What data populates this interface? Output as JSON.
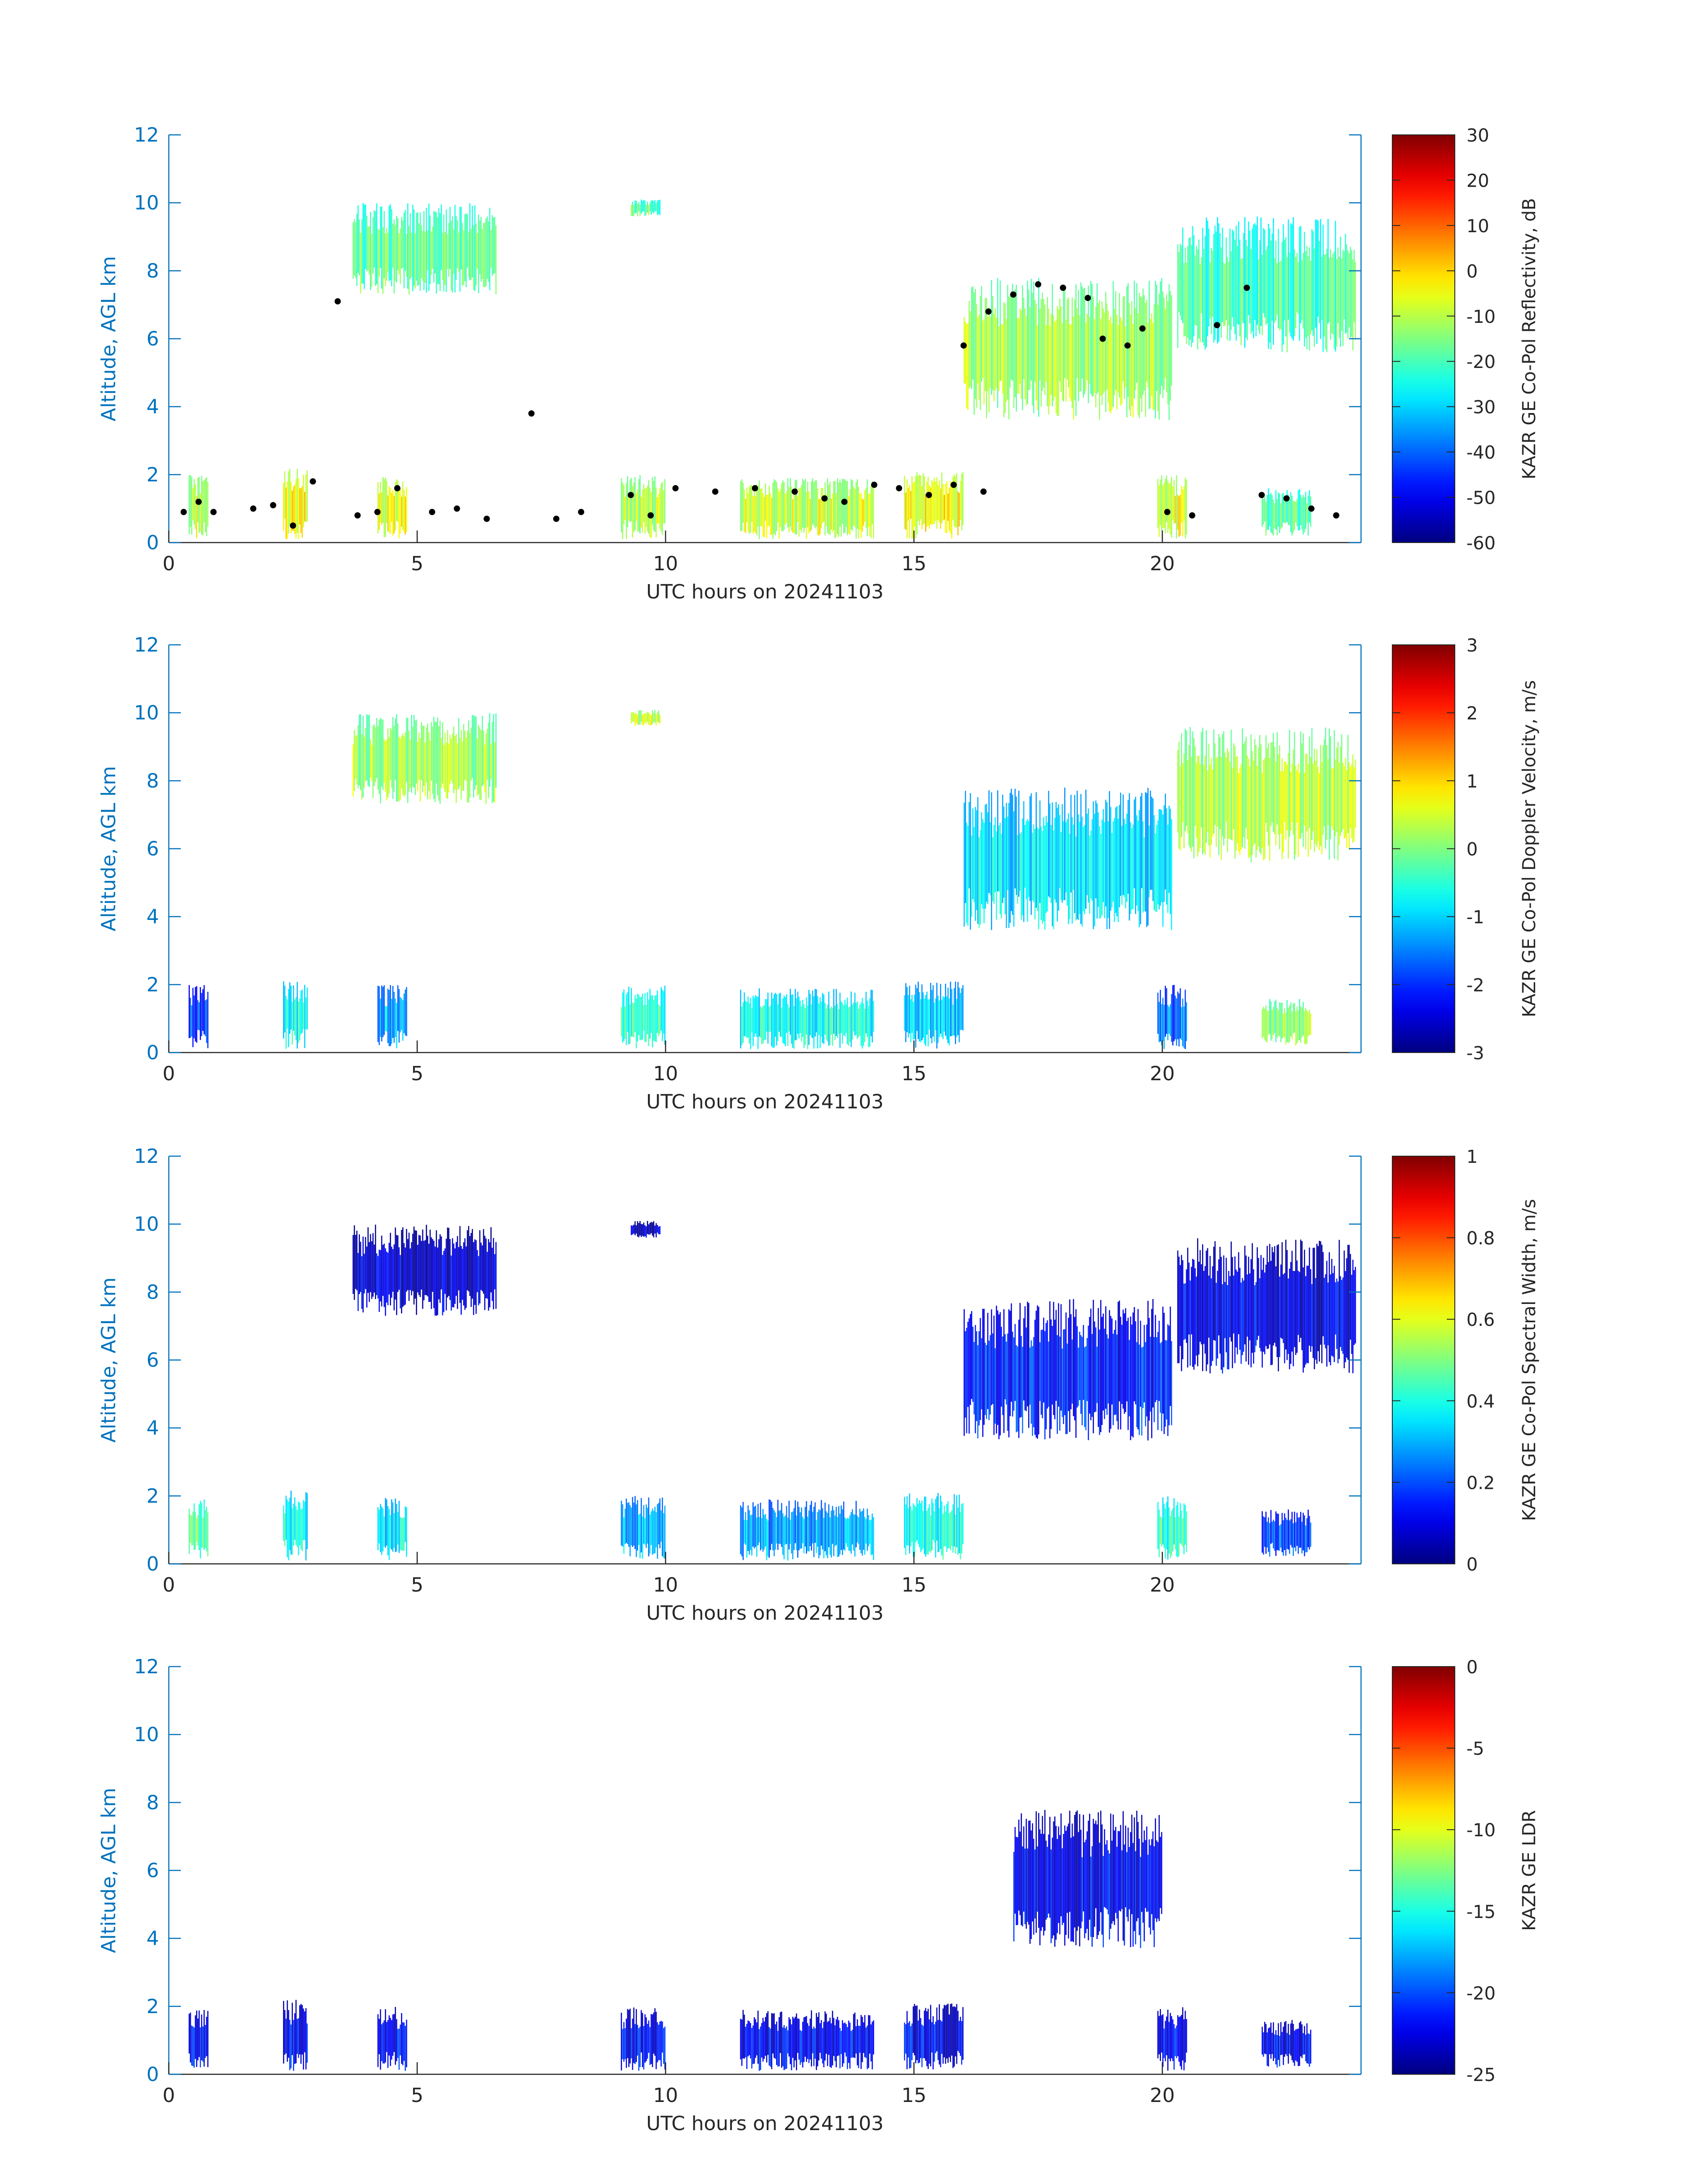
{
  "chart_data": [
    {
      "type": "heatmap",
      "xlabel": "UTC hours on 20241103",
      "ylabel": "Altitude, AGL km",
      "xlim": [
        0,
        24
      ],
      "ylim": [
        0,
        12
      ],
      "xticks": [
        "0",
        "5",
        "10",
        "15",
        "20"
      ],
      "yticks": [
        "0",
        "2",
        "4",
        "6",
        "8",
        "10",
        "12"
      ],
      "colorbar_label": "KAZR GE Co-Pol Reflectivity, dB",
      "colorbar_range": [
        -60,
        30
      ],
      "colorbar_ticks": [
        "-60",
        "-50",
        "-40",
        "-30",
        "-20",
        "-10",
        "0",
        "10",
        "20",
        "30"
      ],
      "colormap": "jet",
      "overlay": "cloud-base points (black)",
      "regions": [
        {
          "x0": 3.7,
          "x1": 6.6,
          "y0": 7.3,
          "y1": 10.0,
          "value": -17
        },
        {
          "x0": 9.3,
          "x1": 9.9,
          "y0": 9.6,
          "y1": 10.1,
          "value": -18
        },
        {
          "x0": 16.0,
          "x1": 20.2,
          "y0": 3.6,
          "y1": 7.8,
          "value": -12
        },
        {
          "x0": 20.3,
          "x1": 23.9,
          "y0": 5.6,
          "y1": 9.6,
          "value": -20
        },
        {
          "x0": 0.4,
          "x1": 0.8,
          "y0": 0.1,
          "y1": 2.0,
          "value": -8
        },
        {
          "x0": 2.3,
          "x1": 2.8,
          "y0": 0.1,
          "y1": 2.2,
          "value": -4
        },
        {
          "x0": 4.2,
          "x1": 4.8,
          "y0": 0.1,
          "y1": 2.0,
          "value": -6
        },
        {
          "x0": 9.1,
          "x1": 10.0,
          "y0": 0.1,
          "y1": 2.0,
          "value": -10
        },
        {
          "x0": 11.5,
          "x1": 14.2,
          "y0": 0.1,
          "y1": 1.9,
          "value": -8
        },
        {
          "x0": 14.8,
          "x1": 16.0,
          "y0": 0.1,
          "y1": 2.1,
          "value": -4
        },
        {
          "x0": 19.9,
          "x1": 20.5,
          "y0": 0.1,
          "y1": 2.0,
          "value": -6
        },
        {
          "x0": 22.0,
          "x1": 23.0,
          "y0": 0.2,
          "y1": 1.6,
          "value": -18
        }
      ],
      "cloud_base_points": [
        [
          0.3,
          0.9
        ],
        [
          0.6,
          1.2
        ],
        [
          0.9,
          0.9
        ],
        [
          1.7,
          1.0
        ],
        [
          2.1,
          1.1
        ],
        [
          2.5,
          0.5
        ],
        [
          2.9,
          1.8
        ],
        [
          3.4,
          7.1
        ],
        [
          3.8,
          0.8
        ],
        [
          4.2,
          0.9
        ],
        [
          4.6,
          1.6
        ],
        [
          5.3,
          0.9
        ],
        [
          5.8,
          1.0
        ],
        [
          6.4,
          0.7
        ],
        [
          7.3,
          3.8
        ],
        [
          7.8,
          0.7
        ],
        [
          8.3,
          0.9
        ],
        [
          9.3,
          1.4
        ],
        [
          9.7,
          0.8
        ],
        [
          10.2,
          1.6
        ],
        [
          11.0,
          1.5
        ],
        [
          11.8,
          1.6
        ],
        [
          12.6,
          1.5
        ],
        [
          13.2,
          1.3
        ],
        [
          13.6,
          1.2
        ],
        [
          14.2,
          1.7
        ],
        [
          14.7,
          1.6
        ],
        [
          15.3,
          1.4
        ],
        [
          15.8,
          1.7
        ],
        [
          16.4,
          1.5
        ],
        [
          16.0,
          5.8
        ],
        [
          16.5,
          6.8
        ],
        [
          17.0,
          7.3
        ],
        [
          17.5,
          7.6
        ],
        [
          18.0,
          7.5
        ],
        [
          18.5,
          7.2
        ],
        [
          18.8,
          6.0
        ],
        [
          19.3,
          5.8
        ],
        [
          19.6,
          6.3
        ],
        [
          20.1,
          0.9
        ],
        [
          20.6,
          0.8
        ],
        [
          21.1,
          6.4
        ],
        [
          21.7,
          7.5
        ],
        [
          22.0,
          1.4
        ],
        [
          22.5,
          1.3
        ],
        [
          23.0,
          1.0
        ],
        [
          23.5,
          0.8
        ]
      ]
    },
    {
      "type": "heatmap",
      "xlabel": "UTC hours on 20241103",
      "ylabel": "Altitude, AGL km",
      "xlim": [
        0,
        24
      ],
      "ylim": [
        0,
        12
      ],
      "xticks": [
        "0",
        "5",
        "10",
        "15",
        "20"
      ],
      "yticks": [
        "0",
        "2",
        "4",
        "6",
        "8",
        "10",
        "12"
      ],
      "colorbar_label": "KAZR GE Co-Pol Doppler Velocity, m/s",
      "colorbar_range": [
        -3,
        3
      ],
      "colorbar_ticks": [
        "-3",
        "-2",
        "-1",
        "0",
        "1",
        "2",
        "3"
      ],
      "colormap": "jet",
      "regions": [
        {
          "x0": 3.7,
          "x1": 6.6,
          "y0": 7.3,
          "y1": 10.0,
          "value": 0.2
        },
        {
          "x0": 9.3,
          "x1": 9.9,
          "y0": 9.6,
          "y1": 10.1,
          "value": 0.4
        },
        {
          "x0": 16.0,
          "x1": 20.2,
          "y0": 3.6,
          "y1": 7.8,
          "value": -0.9
        },
        {
          "x0": 20.3,
          "x1": 23.9,
          "y0": 5.6,
          "y1": 9.6,
          "value": 0.3
        },
        {
          "x0": 0.4,
          "x1": 0.8,
          "y0": 0.1,
          "y1": 2.0,
          "value": -1.8
        },
        {
          "x0": 2.3,
          "x1": 2.8,
          "y0": 0.1,
          "y1": 2.2,
          "value": -0.8
        },
        {
          "x0": 4.2,
          "x1": 4.8,
          "y0": 0.1,
          "y1": 2.0,
          "value": -1.2
        },
        {
          "x0": 9.1,
          "x1": 10.0,
          "y0": 0.1,
          "y1": 2.0,
          "value": -0.5
        },
        {
          "x0": 11.5,
          "x1": 14.2,
          "y0": 0.1,
          "y1": 1.9,
          "value": -0.7
        },
        {
          "x0": 14.8,
          "x1": 16.0,
          "y0": 0.1,
          "y1": 2.1,
          "value": -1.0
        },
        {
          "x0": 19.9,
          "x1": 20.5,
          "y0": 0.1,
          "y1": 2.0,
          "value": -1.6
        },
        {
          "x0": 22.0,
          "x1": 23.0,
          "y0": 0.2,
          "y1": 1.6,
          "value": 0.1
        }
      ]
    },
    {
      "type": "heatmap",
      "xlabel": "UTC hours on 20241103",
      "ylabel": "Altitude, AGL km",
      "xlim": [
        0,
        24
      ],
      "ylim": [
        0,
        12
      ],
      "xticks": [
        "0",
        "5",
        "10",
        "15",
        "20"
      ],
      "yticks": [
        "0",
        "2",
        "4",
        "6",
        "8",
        "10",
        "12"
      ],
      "colorbar_label": "KAZR GE Co-Pol Spectral Width, m/s",
      "colorbar_range": [
        0,
        1
      ],
      "colorbar_ticks": [
        "0",
        "0.2",
        "0.4",
        "0.6",
        "0.8",
        "1"
      ],
      "colormap": "jet",
      "regions": [
        {
          "x0": 3.7,
          "x1": 6.6,
          "y0": 7.3,
          "y1": 10.0,
          "value": 0.08
        },
        {
          "x0": 9.3,
          "x1": 9.9,
          "y0": 9.6,
          "y1": 10.1,
          "value": 0.06
        },
        {
          "x0": 16.0,
          "x1": 20.2,
          "y0": 3.6,
          "y1": 7.8,
          "value": 0.15
        },
        {
          "x0": 20.3,
          "x1": 23.9,
          "y0": 5.6,
          "y1": 9.6,
          "value": 0.1
        },
        {
          "x0": 0.4,
          "x1": 0.8,
          "y0": 0.1,
          "y1": 2.0,
          "value": 0.45
        },
        {
          "x0": 2.3,
          "x1": 2.8,
          "y0": 0.1,
          "y1": 2.2,
          "value": 0.38
        },
        {
          "x0": 4.2,
          "x1": 4.8,
          "y0": 0.1,
          "y1": 2.0,
          "value": 0.35
        },
        {
          "x0": 9.1,
          "x1": 10.0,
          "y0": 0.1,
          "y1": 2.0,
          "value": 0.3
        },
        {
          "x0": 11.5,
          "x1": 14.2,
          "y0": 0.1,
          "y1": 1.9,
          "value": 0.28
        },
        {
          "x0": 14.8,
          "x1": 16.0,
          "y0": 0.1,
          "y1": 2.1,
          "value": 0.4
        },
        {
          "x0": 19.9,
          "x1": 20.5,
          "y0": 0.1,
          "y1": 2.0,
          "value": 0.42
        },
        {
          "x0": 22.0,
          "x1": 23.0,
          "y0": 0.2,
          "y1": 1.6,
          "value": 0.2
        }
      ]
    },
    {
      "type": "heatmap",
      "xlabel": "UTC hours on 20241103",
      "ylabel": "Altitude, AGL km",
      "xlim": [
        0,
        24
      ],
      "ylim": [
        0,
        12
      ],
      "xticks": [
        "0",
        "5",
        "10",
        "15",
        "20"
      ],
      "yticks": [
        "0",
        "2",
        "4",
        "6",
        "8",
        "10",
        "12"
      ],
      "colorbar_label": "KAZR GE LDR",
      "colorbar_range": [
        -25,
        0
      ],
      "colorbar_ticks": [
        "-25",
        "-20",
        "-15",
        "-10",
        "-5",
        "0"
      ],
      "colormap": "jet",
      "regions": [
        {
          "x0": 17.0,
          "x1": 20.0,
          "y0": 3.7,
          "y1": 7.8,
          "value": -22
        },
        {
          "x0": 0.4,
          "x1": 0.8,
          "y0": 0.1,
          "y1": 2.0,
          "value": -22
        },
        {
          "x0": 2.3,
          "x1": 2.8,
          "y0": 0.1,
          "y1": 2.2,
          "value": -22
        },
        {
          "x0": 4.2,
          "x1": 4.8,
          "y0": 0.1,
          "y1": 2.0,
          "value": -22
        },
        {
          "x0": 9.1,
          "x1": 10.0,
          "y0": 0.1,
          "y1": 2.0,
          "value": -22
        },
        {
          "x0": 11.5,
          "x1": 14.2,
          "y0": 0.1,
          "y1": 1.9,
          "value": -22
        },
        {
          "x0": 14.8,
          "x1": 16.0,
          "y0": 0.1,
          "y1": 2.1,
          "value": -22
        },
        {
          "x0": 19.9,
          "x1": 20.5,
          "y0": 0.1,
          "y1": 2.0,
          "value": -22
        },
        {
          "x0": 22.0,
          "x1": 23.0,
          "y0": 0.2,
          "y1": 1.6,
          "value": -22
        }
      ]
    }
  ],
  "colors": {
    "axis": "#0072BD",
    "text": "#262626",
    "overlay_points": "#000000"
  }
}
